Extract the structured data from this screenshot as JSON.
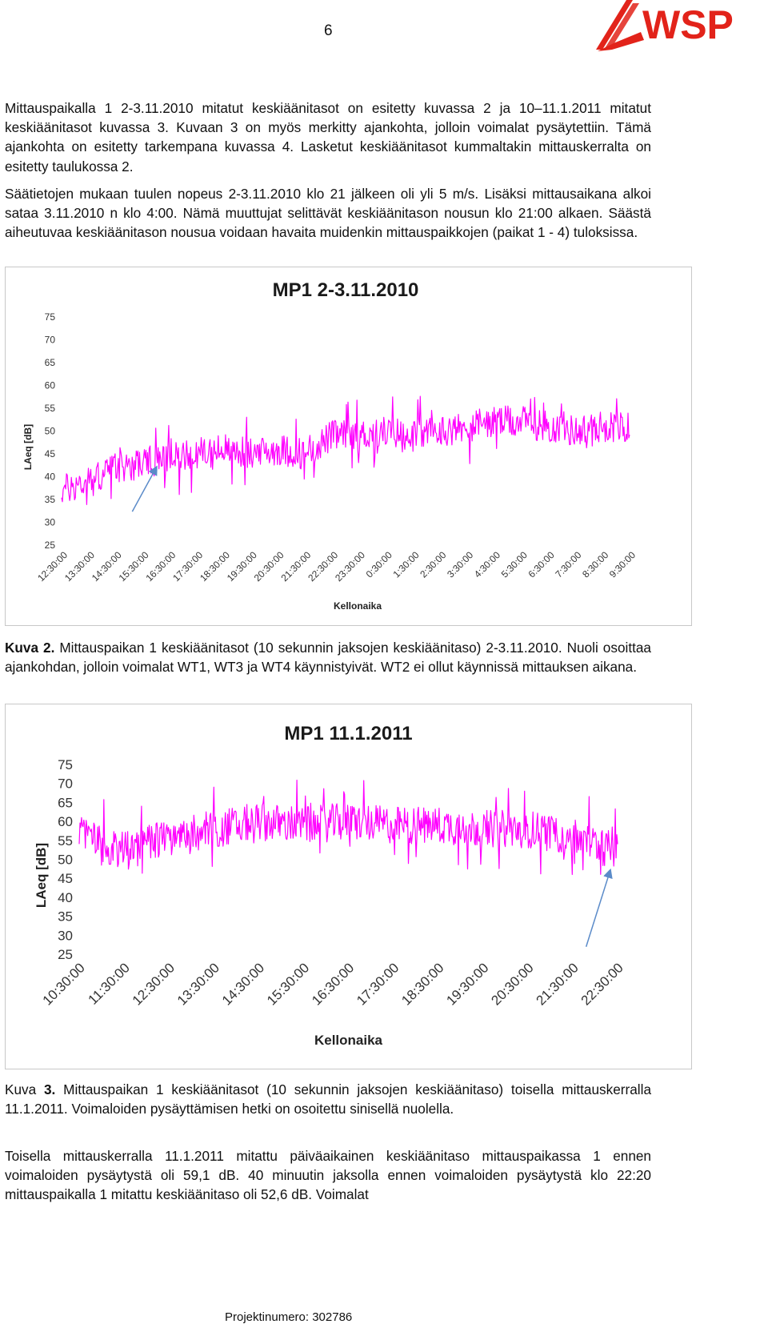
{
  "header": {
    "page_number": "6",
    "logo_text": "WSP",
    "logo_color": "#e2231a"
  },
  "paragraphs": {
    "p1": "Mittauspaikalla 1 2-3.11.2010 mitatut keskiäänitasot on esitetty kuvassa 2 ja 10–11.1.2011 mitatut keskiäänitasot kuvassa 3. Kuvaan 3 on myös merkitty ajankohta, jolloin voimalat pysäytettiin. Tämä ajankohta on esitetty tarkempana kuvassa 4. Lasketut keskiäänitasot kummaltakin mittauskerralta on esitetty taulukossa 2.",
    "p2": "Säätietojen mukaan tuulen nopeus 2-3.11.2010 klo 21 jälkeen oli yli 5 m/s. Lisäksi mittausaikana alkoi sataa 3.11.2010 n klo 4:00. Nämä muuttujat selittävät keskiäänitason nousun klo 21:00 alkaen. Säästä aiheutuvaa keskiäänitason nousua voidaan havaita muidenkin mittauspaikkojen (paikat 1 - 4) tuloksissa."
  },
  "captions": {
    "fig2_label": "Kuva 2",
    "fig2_dot": ".",
    "fig2_text": " Mittauspaikan 1 keskiäänitasot (10 sekunnin jaksojen keskiäänitaso) 2-3.11.2010. Nuoli osoittaa ajankohdan, jolloin voimalat WT1, WT3 ja WT4 käynnistyivät. WT2 ei ollut käynnissä mittauksen aikana.",
    "fig3_label": "Kuva ",
    "fig3_num": "3.",
    "fig3_text": " Mittauspaikan 1 keskiäänitasot (10 sekunnin jaksojen keskiäänitaso) toisella mittauskerralla 11.1.2011. Voimaloiden pysäyttämisen hetki on osoitettu sinisellä nuolella."
  },
  "closing": {
    "p3": "Toisella mittauskerralla 11.1.2011 mitattu päiväaikainen keskiäänitaso mittauspaikassa 1 ennen voimaloiden pysäytystä oli 59,1 dB. 40 minuutin jaksolla ennen voimaloiden pysäytystä klo 22:20 mittauspaikalla 1 mitattu keskiäänitaso oli 52,6 dB. Voimalat"
  },
  "footer": {
    "project_number": "Projektinumero: 302786"
  },
  "chart_data": [
    {
      "type": "line",
      "title": "MP1 2-3.11.2010",
      "xlabel": "Kellonaika",
      "ylabel": "LAeq [dB]",
      "ylim": [
        25,
        75
      ],
      "yticks": [
        75,
        70,
        65,
        60,
        55,
        50,
        45,
        40,
        35,
        30,
        25
      ],
      "x_ticks": [
        "12:30:00",
        "13:30:00",
        "14:30:00",
        "15:30:00",
        "16:30:00",
        "17:30:00",
        "18:30:00",
        "19:30:00",
        "20:30:00",
        "21:30:00",
        "22:30:00",
        "23:30:00",
        "0:30:00",
        "1:30:00",
        "2:30:00",
        "3:30:00",
        "4:30:00",
        "5:30:00",
        "6:30:00",
        "7:30:00",
        "8:30:00",
        "9:30:00"
      ],
      "series": [
        {
          "color": "#ff00ff",
          "x": [
            "12:30:00",
            "13:30:00",
            "14:30:00",
            "15:30:00",
            "16:30:00",
            "17:30:00",
            "18:30:00",
            "19:30:00",
            "20:30:00",
            "21:30:00",
            "22:30:00",
            "23:30:00",
            "0:30:00",
            "1:30:00",
            "2:30:00",
            "3:30:00",
            "4:30:00",
            "5:30:00",
            "6:30:00",
            "7:30:00",
            "8:30:00",
            "9:30:00"
          ],
          "values": [
            37,
            39,
            42,
            43,
            44,
            45,
            46,
            45,
            46,
            45,
            49,
            49,
            50,
            49,
            50,
            51,
            52,
            52,
            51,
            50,
            51,
            51
          ],
          "noise": 3.5
        }
      ],
      "annotation": {
        "type": "arrow",
        "color": "#5b8bc9",
        "at_x": "16:00:00",
        "at_y": 42
      }
    },
    {
      "type": "line",
      "title": "MP1 11.1.2011",
      "xlabel": "Kellonaika",
      "ylabel": "LAeq [dB]",
      "ylim": [
        25,
        75
      ],
      "yticks": [
        75,
        70,
        65,
        60,
        55,
        50,
        45,
        40,
        35,
        30,
        25
      ],
      "x_ticks": [
        "10:30:00",
        "11:30:00",
        "12:30:00",
        "13:30:00",
        "14:30:00",
        "15:30:00",
        "16:30:00",
        "17:30:00",
        "18:30:00",
        "19:30:00",
        "20:30:00",
        "21:30:00",
        "22:30:00"
      ],
      "series": [
        {
          "color": "#ff00ff",
          "x": [
            "10:30:00",
            "11:30:00",
            "12:30:00",
            "13:30:00",
            "14:30:00",
            "15:30:00",
            "16:30:00",
            "17:30:00",
            "18:30:00",
            "19:30:00",
            "20:30:00",
            "21:30:00",
            "22:30:00"
          ],
          "values": [
            57,
            52,
            56,
            58,
            60,
            59,
            60,
            59,
            59,
            58,
            58,
            56,
            52
          ],
          "noise": 5
        }
      ],
      "annotation": {
        "type": "arrow",
        "color": "#5b8bc9",
        "at_x": "22:20:00",
        "at_y": 47
      }
    }
  ]
}
